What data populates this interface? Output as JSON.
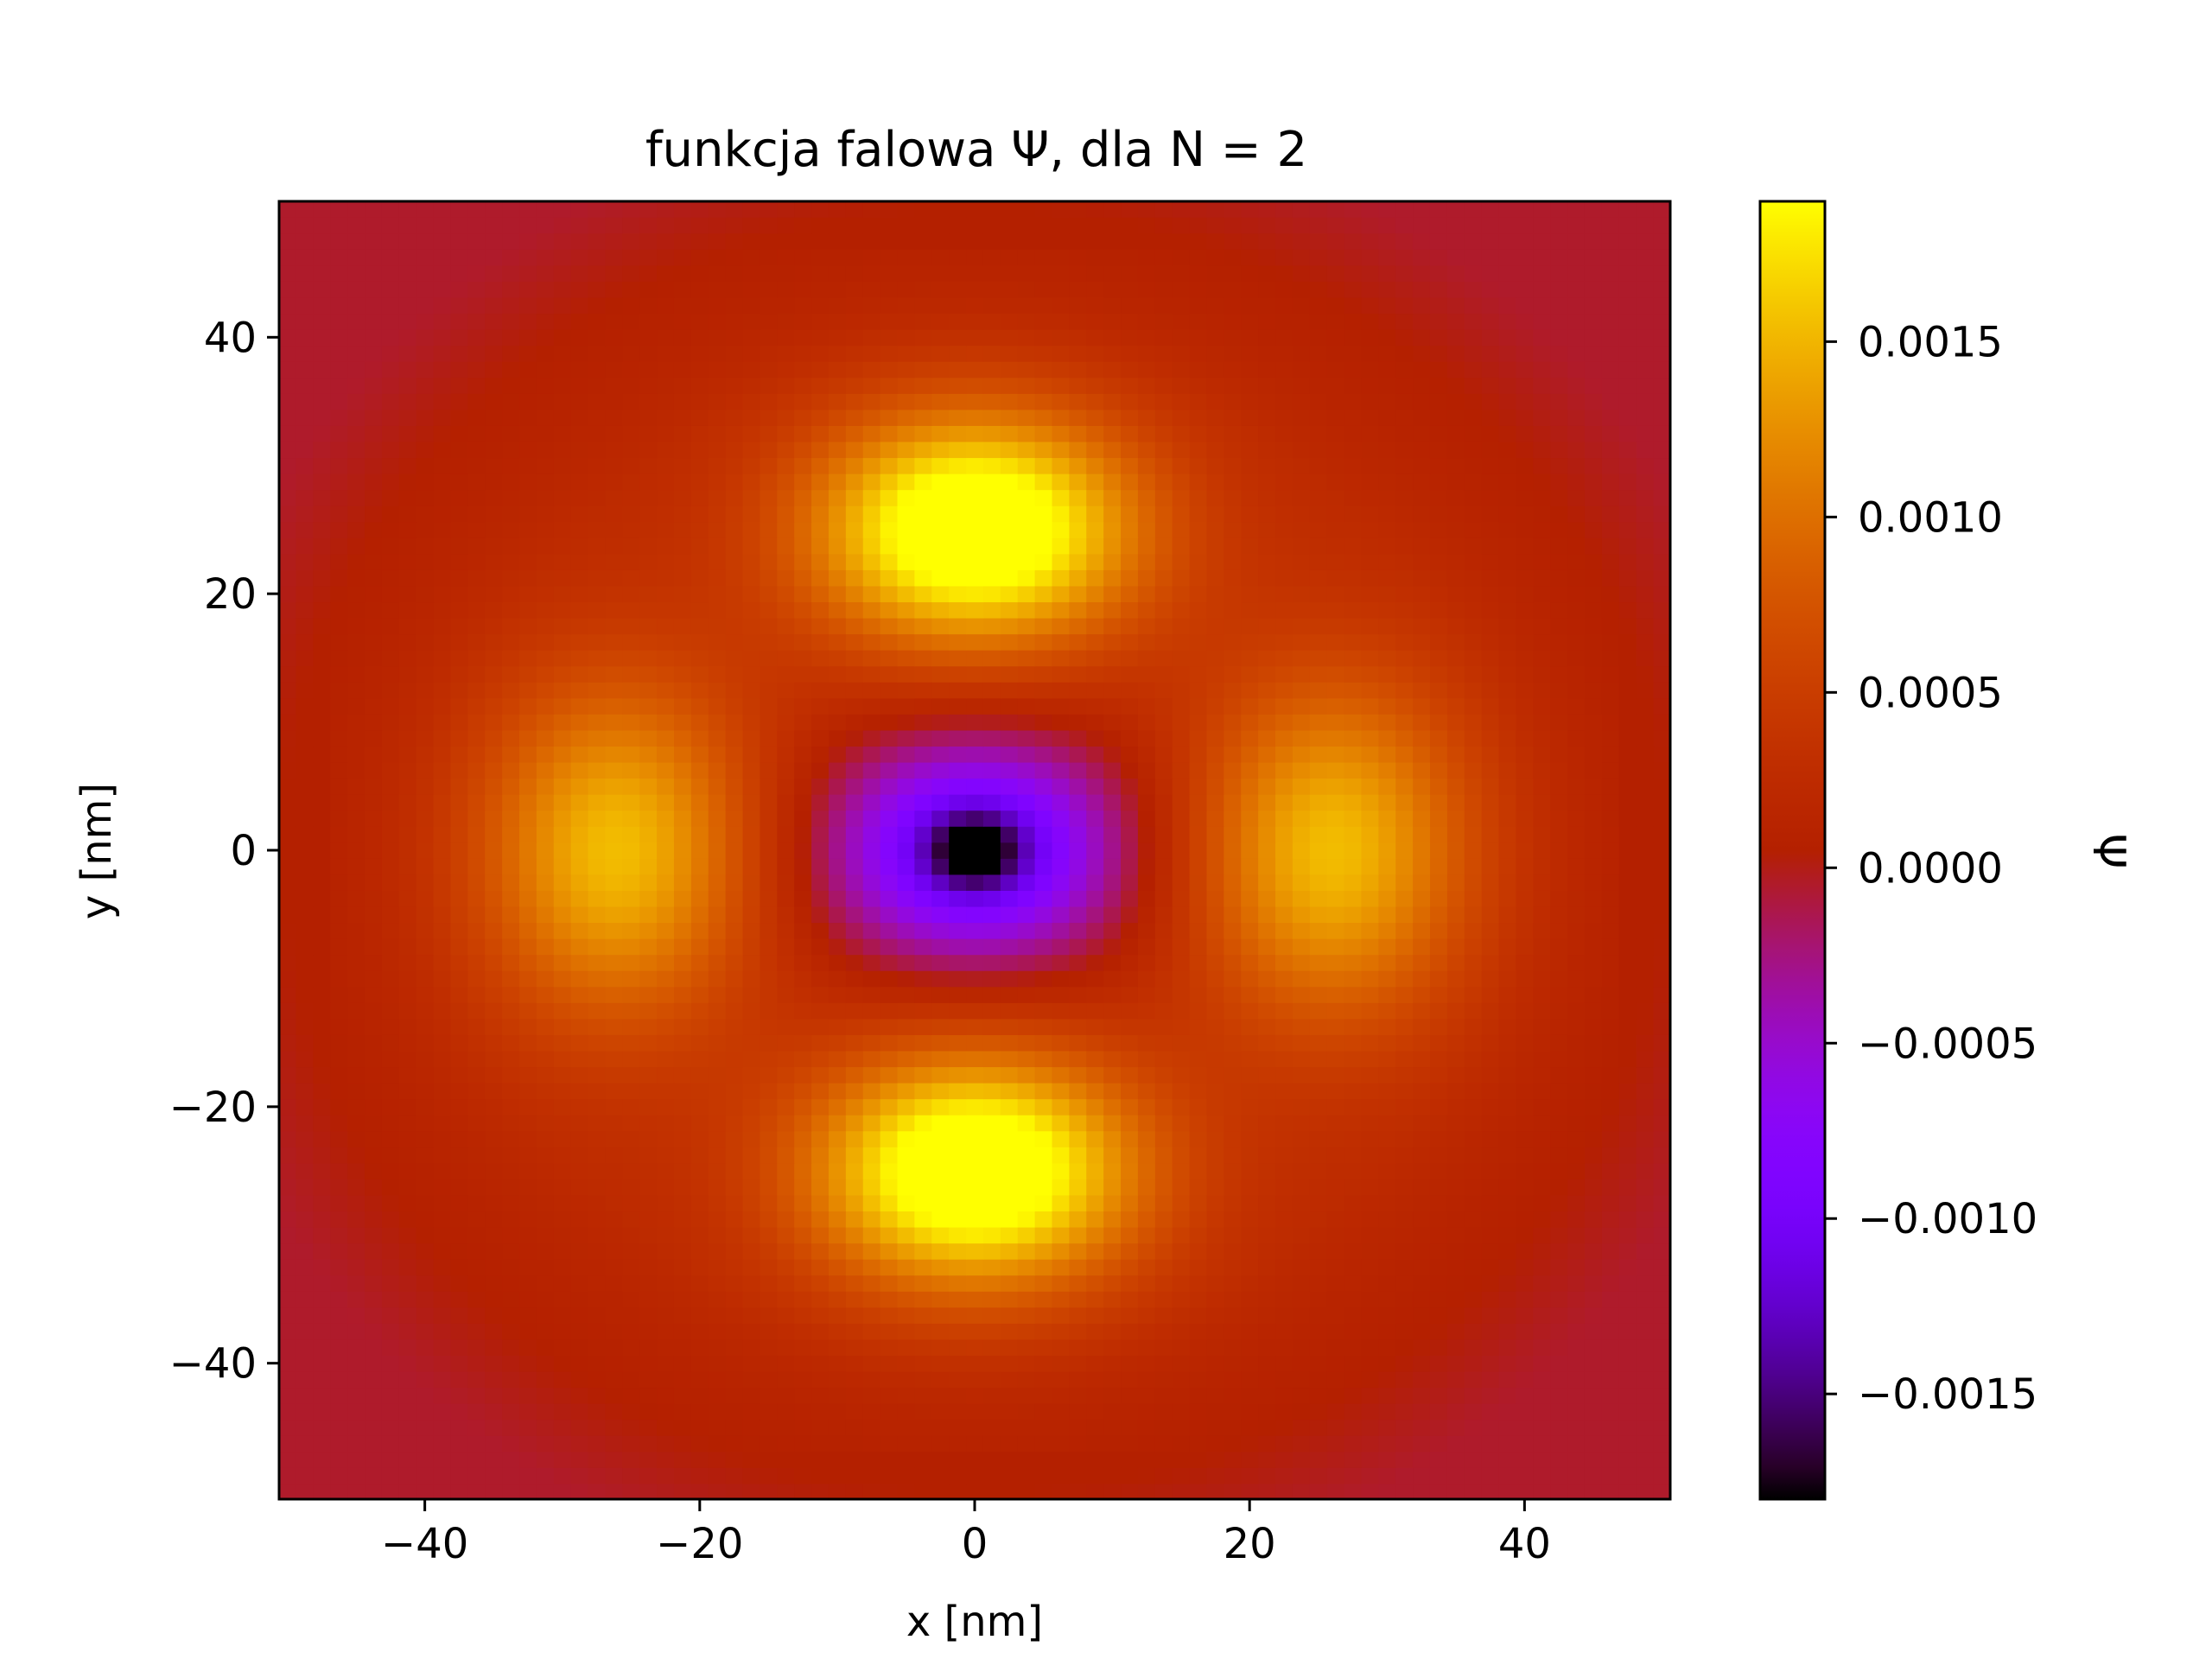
{
  "chart_data": {
    "type": "heatmap",
    "title": "funkcja falowa Ψ, dla N = 2",
    "xlabel": "x [nm]",
    "ylabel": "y [nm]",
    "xlim": [
      -50.6,
      50.6
    ],
    "ylim": [
      -50.6,
      50.6
    ],
    "grid": false,
    "x_ticks": [
      -40,
      -20,
      0,
      20,
      40
    ],
    "y_ticks": [
      -40,
      -20,
      0,
      20,
      40
    ],
    "x_tick_labels": [
      "−40",
      "−20",
      "0",
      "20",
      "40"
    ],
    "y_tick_labels": [
      "−40",
      "−20",
      "0",
      "20",
      "40"
    ],
    "grid_size": 81,
    "grid_step_nm": 1.25,
    "colormap": "gnuplot",
    "colorbar": {
      "label": "Ψ",
      "placement": "right",
      "vmin": -0.0018,
      "vmax": 0.0019,
      "ticks": [
        -0.0015,
        -0.001,
        -0.0005,
        0.0,
        0.0005,
        0.001,
        0.0015
      ],
      "tick_labels": [
        "−0.0015",
        "−0.0010",
        "−0.0005",
        "0.0000",
        "0.0005",
        "0.0010",
        "0.0015"
      ]
    },
    "features": [
      {
        "kind": "minimum",
        "x": 0,
        "y": 0,
        "value": -0.0018
      },
      {
        "kind": "negative-lobe",
        "x": 0,
        "y": 0,
        "radius_x": 14,
        "radius_y": 11,
        "value": -0.001
      },
      {
        "kind": "maximum",
        "x": 0,
        "y": 25,
        "value": 0.0019
      },
      {
        "kind": "maximum",
        "x": 0,
        "y": -25,
        "value": 0.0019
      },
      {
        "kind": "maximum",
        "x": 26,
        "y": 0,
        "value": 0.0013
      },
      {
        "kind": "maximum",
        "x": -26,
        "y": 0,
        "value": 0.0013
      },
      {
        "kind": "plateau",
        "x": 40,
        "y": 40,
        "value": 0.0001
      }
    ]
  }
}
